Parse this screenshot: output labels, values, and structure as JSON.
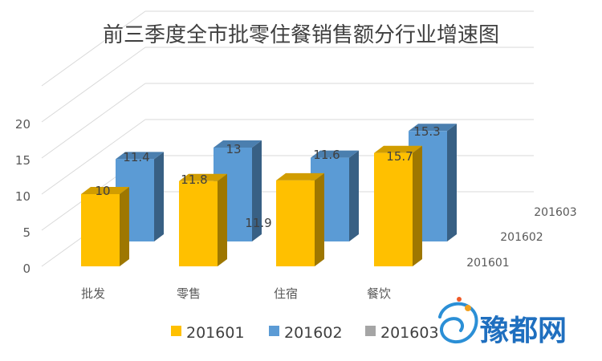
{
  "chart_data": {
    "type": "bar",
    "subtype": "3d-clustered-column",
    "title": "前三季度全市批零住餐销售额分行业增速图",
    "categories": [
      "批发",
      "零售",
      "住宿",
      "餐饮"
    ],
    "series": [
      {
        "name": "201601",
        "color": "#FFC000",
        "values": [
          10,
          11.8,
          11.9,
          15.7
        ]
      },
      {
        "name": "201602",
        "color": "#5B9BD5",
        "values": [
          11.4,
          13,
          11.6,
          15.3
        ]
      },
      {
        "name": "201603",
        "color": "#A5A5A5",
        "values": [
          null,
          null,
          null,
          null
        ]
      }
    ],
    "data_labels": [
      {
        "series": 0,
        "index": 0,
        "text": "10"
      },
      {
        "series": 0,
        "index": 1,
        "text": "11.8"
      },
      {
        "series": 0,
        "index": 2,
        "text": "11.9"
      },
      {
        "series": 0,
        "index": 3,
        "text": "15.7"
      },
      {
        "series": 1,
        "index": 0,
        "text": "11.4"
      },
      {
        "series": 1,
        "index": 1,
        "text": "13"
      },
      {
        "series": 1,
        "index": 2,
        "text": "11.6"
      },
      {
        "series": 1,
        "index": 3,
        "text": "15.3"
      }
    ],
    "yticks": [
      0,
      5,
      10,
      15,
      20
    ],
    "ylim": [
      0,
      25
    ],
    "grid": true,
    "legend_position": "bottom",
    "depth_labels": [
      "201601",
      "201602",
      "201603"
    ]
  },
  "watermark": {
    "text": "豫都网"
  }
}
